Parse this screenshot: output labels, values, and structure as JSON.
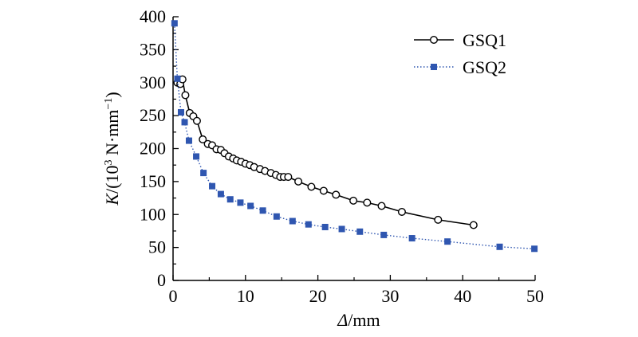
{
  "chart_data": {
    "type": "line",
    "xlabel": {
      "symbol": "Δ",
      "unit": "/mm"
    },
    "ylabel": {
      "symbol": "K",
      "unit_prefix": "/(10",
      "exponent": "3",
      "unit_mid": " N·mm",
      "unit_exp": "−1",
      "unit_suffix": ")"
    },
    "xlim": [
      0,
      50
    ],
    "ylim": [
      0,
      400
    ],
    "xticks": [
      0,
      10,
      20,
      30,
      40,
      50
    ],
    "yticks": [
      0,
      50,
      100,
      150,
      200,
      250,
      300,
      350,
      400
    ],
    "grid": false,
    "legend_position": "top-right",
    "series": [
      {
        "name": "GSQ1",
        "marker": "open-circle",
        "line": "solid",
        "color": "#000000",
        "points": [
          [
            0.6,
            300
          ],
          [
            1.0,
            298
          ],
          [
            1.3,
            305
          ],
          [
            1.7,
            281
          ],
          [
            2.3,
            254
          ],
          [
            2.8,
            249
          ],
          [
            3.3,
            242
          ],
          [
            4.1,
            214
          ],
          [
            4.8,
            207
          ],
          [
            5.4,
            205
          ],
          [
            6.0,
            199
          ],
          [
            6.6,
            198
          ],
          [
            7.1,
            193
          ],
          [
            7.7,
            188
          ],
          [
            8.3,
            185
          ],
          [
            8.8,
            182
          ],
          [
            9.4,
            180
          ],
          [
            10.0,
            177
          ],
          [
            10.6,
            175
          ],
          [
            11.2,
            172
          ],
          [
            12.0,
            169
          ],
          [
            12.7,
            166
          ],
          [
            13.5,
            163
          ],
          [
            14.2,
            160
          ],
          [
            14.8,
            157
          ],
          [
            15.3,
            157
          ],
          [
            15.9,
            157
          ],
          [
            17.3,
            150
          ],
          [
            19.1,
            142
          ],
          [
            20.8,
            136
          ],
          [
            22.5,
            130
          ],
          [
            24.9,
            121
          ],
          [
            26.8,
            118
          ],
          [
            28.8,
            113
          ],
          [
            31.6,
            104
          ],
          [
            36.6,
            92
          ],
          [
            41.5,
            84
          ]
        ]
      },
      {
        "name": "GSQ2",
        "marker": "filled-square",
        "line": "dotted",
        "color": "#2f56b0",
        "points": [
          [
            0.2,
            390
          ],
          [
            0.6,
            306
          ],
          [
            1.1,
            255
          ],
          [
            1.6,
            240
          ],
          [
            2.2,
            212
          ],
          [
            3.2,
            188
          ],
          [
            4.2,
            163
          ],
          [
            5.4,
            143
          ],
          [
            6.6,
            131
          ],
          [
            7.9,
            123
          ],
          [
            9.3,
            118
          ],
          [
            10.7,
            113
          ],
          [
            12.4,
            106
          ],
          [
            14.3,
            97
          ],
          [
            16.5,
            90
          ],
          [
            18.7,
            85
          ],
          [
            21.0,
            81
          ],
          [
            23.3,
            78
          ],
          [
            25.8,
            74
          ],
          [
            29.1,
            69
          ],
          [
            33.0,
            64
          ],
          [
            37.9,
            59
          ],
          [
            45.1,
            51
          ],
          [
            49.9,
            48
          ]
        ]
      }
    ]
  }
}
